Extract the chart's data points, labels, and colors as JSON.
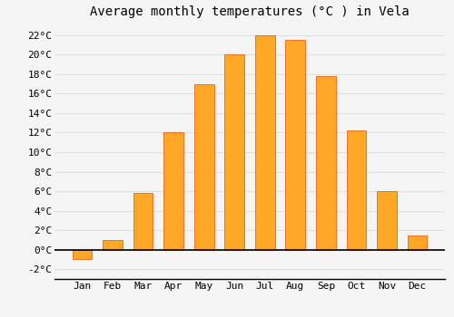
{
  "title": "Average monthly temperatures (°C ) in Vela",
  "months": [
    "Jan",
    "Feb",
    "Mar",
    "Apr",
    "May",
    "Jun",
    "Jul",
    "Aug",
    "Sep",
    "Oct",
    "Nov",
    "Dec"
  ],
  "values": [
    -1.0,
    1.0,
    5.8,
    12.0,
    17.0,
    20.0,
    22.0,
    21.5,
    17.8,
    12.2,
    6.0,
    1.5
  ],
  "bar_color": "#FFA726",
  "bar_edge_color": "#E65100",
  "background_color": "#F5F5F5",
  "plot_bg_color": "#F5F5F5",
  "grid_color": "#E0E0E0",
  "ylim": [
    -3,
    23
  ],
  "yticks": [
    -2,
    0,
    2,
    4,
    6,
    8,
    10,
    12,
    14,
    16,
    18,
    20,
    22
  ],
  "title_fontsize": 10,
  "tick_fontsize": 8,
  "zero_line_color": "#000000",
  "figsize": [
    5.0,
    3.5
  ],
  "dpi": 100
}
